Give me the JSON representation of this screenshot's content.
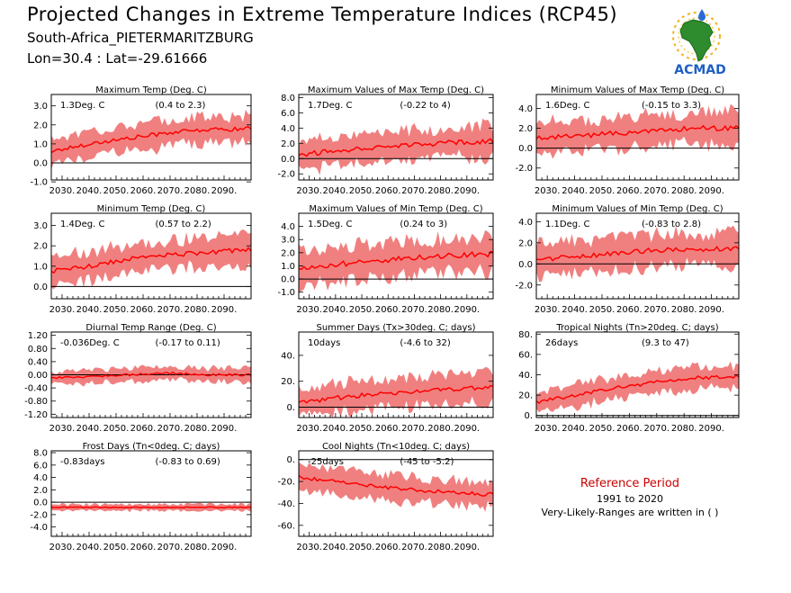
{
  "header": {
    "title": "Projected Changes in Extreme Temperature Indices (RCP45)",
    "subtitle": "South-Africa_PIETERMARITZBURG",
    "coords": "Lon=30.4 : Lat=-29.61666"
  },
  "logo": {
    "text": "ACMAD",
    "icon": "africa-map-logo"
  },
  "reference": {
    "title": "Reference Period",
    "years": "1991 to 2020",
    "note": "Very-Likely-Ranges are written in ( )"
  },
  "colors": {
    "band": "#f08080",
    "line": "#ff0000",
    "zero_line": "#000000"
  },
  "chart_data": [
    {
      "id": "txx-mean",
      "type": "area",
      "title": "Maximum Temp (Deg. C)",
      "value_label": "1.3Deg. C",
      "range_label": "(0.4 to 2.3)",
      "x_ticks": [
        "2030.",
        "2040.",
        "2050.",
        "2060.",
        "2070.",
        "2080.",
        "2090."
      ],
      "xlim": [
        2026,
        2100
      ],
      "ylim": [
        -0.9,
        3.6
      ],
      "y_ticks": [
        "-1.0",
        "0.0",
        "1.0",
        "2.0",
        "3.0"
      ],
      "y_tick_values": [
        -1.0,
        0.0,
        1.0,
        2.0,
        3.0
      ],
      "series": [
        {
          "x": [
            2026,
            2040,
            2055,
            2070,
            2085,
            2100
          ],
          "values": [
            0.6,
            1.0,
            1.3,
            1.6,
            1.75,
            1.8
          ],
          "band": 0.7
        }
      ]
    },
    {
      "id": "txx",
      "type": "area",
      "title": "Maximum Values of Max Temp (Deg. C)",
      "value_label": "1.7Deg. C",
      "range_label": "(-0.22 to 4)",
      "x_ticks": [
        "2030.",
        "2040.",
        "2050.",
        "2060.",
        "2070.",
        "2080.",
        "2090."
      ],
      "xlim": [
        2026,
        2100
      ],
      "ylim": [
        -2.8,
        8.4
      ],
      "y_ticks": [
        "-2.0",
        "0.0",
        "2.0",
        "4.0",
        "6.0",
        "8.0"
      ],
      "y_tick_values": [
        -2.0,
        0.0,
        2.0,
        4.0,
        6.0,
        8.0
      ],
      "series": [
        {
          "x": [
            2026,
            2040,
            2055,
            2070,
            2085,
            2100
          ],
          "values": [
            0.5,
            1.0,
            1.5,
            1.8,
            2.1,
            2.3
          ],
          "band": 2.0
        }
      ]
    },
    {
      "id": "txn",
      "type": "area",
      "title": "Minimum Values of Max Temp (Deg. C)",
      "value_label": "1.6Deg. C",
      "range_label": "(-0.15 to 3.3)",
      "x_ticks": [
        "2030.",
        "2040.",
        "2050.",
        "2060.",
        "2070.",
        "2080.",
        "2090."
      ],
      "xlim": [
        2026,
        2100
      ],
      "ylim": [
        -3.2,
        5.4
      ],
      "y_ticks": [
        "-2.0",
        "0.0",
        "2.0",
        "4.0"
      ],
      "y_tick_values": [
        -2.0,
        0.0,
        2.0,
        4.0
      ],
      "series": [
        {
          "x": [
            2026,
            2040,
            2055,
            2070,
            2085,
            2100
          ],
          "values": [
            1.0,
            1.2,
            1.5,
            1.8,
            2.0,
            2.0
          ],
          "band": 1.6
        }
      ]
    },
    {
      "id": "tn-mean",
      "type": "area",
      "title": "Minimum Temp (Deg. C)",
      "value_label": "1.4Deg. C",
      "range_label": "(0.57 to 2.2)",
      "x_ticks": [
        "2030.",
        "2040.",
        "2050.",
        "2060.",
        "2070.",
        "2080.",
        "2090."
      ],
      "xlim": [
        2026,
        2100
      ],
      "ylim": [
        -0.6,
        3.6
      ],
      "y_ticks": [
        "0.0",
        "1.0",
        "2.0",
        "3.0"
      ],
      "y_tick_values": [
        0.0,
        1.0,
        2.0,
        3.0
      ],
      "series": [
        {
          "x": [
            2026,
            2040,
            2055,
            2070,
            2085,
            2100
          ],
          "values": [
            0.75,
            1.0,
            1.35,
            1.55,
            1.7,
            1.8
          ],
          "band": 0.7
        }
      ]
    },
    {
      "id": "tnx",
      "type": "area",
      "title": "Maximum Values of Min Temp (Deg. C)",
      "value_label": "1.5Deg. C",
      "range_label": "(0.24 to 3)",
      "x_ticks": [
        "2030.",
        "2040.",
        "2050.",
        "2060.",
        "2070.",
        "2080.",
        "2090."
      ],
      "xlim": [
        2026,
        2100
      ],
      "ylim": [
        -1.5,
        5.0
      ],
      "y_ticks": [
        "-1.0",
        "0.0",
        "1.0",
        "2.0",
        "3.0",
        "4.0"
      ],
      "y_tick_values": [
        -1.0,
        0.0,
        1.0,
        2.0,
        3.0,
        4.0
      ],
      "series": [
        {
          "x": [
            2026,
            2040,
            2055,
            2070,
            2085,
            2100
          ],
          "values": [
            0.8,
            1.1,
            1.4,
            1.6,
            1.8,
            1.9
          ],
          "band": 1.3
        }
      ]
    },
    {
      "id": "tnn",
      "type": "area",
      "title": "Minimum Values of Min Temp (Deg. C)",
      "value_label": "1.1Deg. C",
      "range_label": "(-0.83 to 2.8)",
      "x_ticks": [
        "2030.",
        "2040.",
        "2050.",
        "2060.",
        "2070.",
        "2080.",
        "2090."
      ],
      "xlim": [
        2026,
        2100
      ],
      "ylim": [
        -3.3,
        4.8
      ],
      "y_ticks": [
        "-2.0",
        "0.0",
        "2.0",
        "4.0"
      ],
      "y_tick_values": [
        -2.0,
        0.0,
        2.0,
        4.0
      ],
      "series": [
        {
          "x": [
            2026,
            2040,
            2055,
            2070,
            2085,
            2100
          ],
          "values": [
            0.4,
            0.7,
            1.0,
            1.3,
            1.4,
            1.4
          ],
          "band": 1.5
        }
      ]
    },
    {
      "id": "dtr",
      "type": "area",
      "title": "Diurnal Temp Range (Deg. C)",
      "value_label": "-0.036Deg. C",
      "range_label": "(-0.17 to 0.11)",
      "x_ticks": [
        "2030.",
        "2040.",
        "2050.",
        "2060.",
        "2070.",
        "2080.",
        "2090."
      ],
      "xlim": [
        2026,
        2100
      ],
      "ylim": [
        -1.3,
        1.3
      ],
      "y_ticks": [
        "-1.20",
        "-0.80",
        "-0.40",
        "0.00",
        "0.40",
        "0.80",
        "1.20"
      ],
      "y_tick_values": [
        -1.2,
        -0.8,
        -0.4,
        0.0,
        0.4,
        0.8,
        1.2
      ],
      "series": [
        {
          "x": [
            2026,
            2040,
            2055,
            2070,
            2085,
            2100
          ],
          "values": [
            -0.1,
            -0.05,
            0.0,
            0.05,
            0.0,
            0.0
          ],
          "band": 0.2
        }
      ]
    },
    {
      "id": "su",
      "type": "area",
      "title": "Summer Days (Tx>30deg. C; days)",
      "value_label": "10days",
      "range_label": "(-4.6 to 32)",
      "x_ticks": [
        "2030.",
        "2040.",
        "2050.",
        "2060.",
        "2070.",
        "2080.",
        "2090."
      ],
      "xlim": [
        2026,
        2100
      ],
      "ylim": [
        -8,
        58
      ],
      "y_ticks": [
        "0.",
        "20.",
        "40."
      ],
      "y_tick_values": [
        0,
        20,
        40
      ],
      "series": [
        {
          "x": [
            2026,
            2040,
            2055,
            2070,
            2085,
            2100
          ],
          "values": [
            3,
            7,
            10,
            12,
            14,
            15
          ],
          "band": 11
        }
      ]
    },
    {
      "id": "tr",
      "type": "area",
      "title": "Tropical Nights (Tn>20deg. C; days)",
      "value_label": "26days",
      "range_label": "(9.3 to 47)",
      "x_ticks": [
        "2030.",
        "2040.",
        "2050.",
        "2060.",
        "2070.",
        "2080.",
        "2090."
      ],
      "xlim": [
        2026,
        2100
      ],
      "ylim": [
        -2,
        82
      ],
      "y_ticks": [
        "0.",
        "20.",
        "40.",
        "60.",
        "80."
      ],
      "y_tick_values": [
        0,
        20,
        40,
        60,
        80
      ],
      "series": [
        {
          "x": [
            2026,
            2040,
            2055,
            2070,
            2085,
            2100
          ],
          "values": [
            13,
            20,
            27,
            33,
            37,
            38
          ],
          "band": 11
        }
      ]
    },
    {
      "id": "fd",
      "type": "area",
      "title": "Frost Days (Tn<0deg. C; days)",
      "value_label": "-0.83days",
      "range_label": "(-0.83 to 0.69)",
      "x_ticks": [
        "2030.",
        "2040.",
        "2050.",
        "2060.",
        "2070.",
        "2080.",
        "2090."
      ],
      "xlim": [
        2026,
        2100
      ],
      "ylim": [
        -5.5,
        8.3
      ],
      "y_ticks": [
        "-4.0",
        "-2.0",
        "0.0",
        "2.0",
        "4.0",
        "6.0",
        "8.0"
      ],
      "y_tick_values": [
        -4.0,
        -2.0,
        0.0,
        2.0,
        4.0,
        6.0,
        8.0
      ],
      "series": [
        {
          "x": [
            2026,
            2040,
            2055,
            2070,
            2085,
            2100
          ],
          "values": [
            -0.83,
            -0.83,
            -0.83,
            -0.83,
            -0.83,
            -0.83
          ],
          "band": 0.5
        }
      ]
    },
    {
      "id": "tnlt10",
      "type": "area",
      "title": "Cool Nights (Tn<10deg. C; days)",
      "value_label": "-25days",
      "range_label": "(-45 to -5.2)",
      "x_ticks": [
        "2030.",
        "2040.",
        "2050.",
        "2060.",
        "2070.",
        "2080.",
        "2090."
      ],
      "xlim": [
        2026,
        2100
      ],
      "ylim": [
        -70,
        8
      ],
      "y_ticks": [
        "0.",
        "-20.",
        "-40.",
        "-60."
      ],
      "y_tick_values": [
        0,
        -20,
        -40,
        -60
      ],
      "series": [
        {
          "x": [
            2026,
            2040,
            2055,
            2070,
            2085,
            2100
          ],
          "values": [
            -16,
            -20,
            -24,
            -28,
            -30,
            -32
          ],
          "band": 11
        }
      ]
    }
  ]
}
